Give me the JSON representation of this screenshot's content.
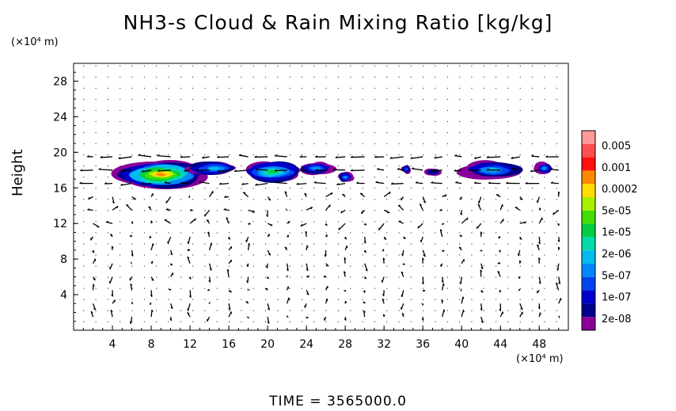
{
  "chart_data": {
    "type": "heatmap",
    "title": "NH3-s Cloud & Rain Mixing Ratio [kg/kg]",
    "ylabel": "Height",
    "x_unit": "(×10⁴ m)",
    "y_unit": "(×10⁴ m)",
    "footer": "TIME = 3565000.0",
    "xlim": [
      0,
      51
    ],
    "ylim": [
      0,
      30
    ],
    "x_ticks": [
      4,
      8,
      12,
      16,
      20,
      24,
      28,
      32,
      36,
      40,
      44,
      48
    ],
    "y_ticks": [
      4,
      8,
      12,
      16,
      20,
      24,
      28
    ],
    "colorbar": {
      "labels": [
        "0.005",
        "0.001",
        "0.0002",
        "5e-05",
        "1e-05",
        "2e-06",
        "5e-07",
        "1e-07",
        "2e-08"
      ],
      "colors": [
        "#ff9a9a",
        "#ff5050",
        "#ff1010",
        "#ff8800",
        "#ffdd00",
        "#aaee00",
        "#44dd00",
        "#00cc44",
        "#00ddaa",
        "#00bbee",
        "#0088ff",
        "#0044ee",
        "#0000cc",
        "#000088",
        "#880099"
      ]
    },
    "cloud_regions": [
      {
        "x_center": 9,
        "y_center": 17.5,
        "x_halfwidth": 4.6,
        "y_halfwidth": 1.6,
        "max_level": 11
      },
      {
        "x_center": 14.5,
        "y_center": 18.2,
        "x_halfwidth": 2.6,
        "y_halfwidth": 0.8,
        "max_level": 5
      },
      {
        "x_center": 20.5,
        "y_center": 17.8,
        "x_halfwidth": 3.2,
        "y_halfwidth": 1.2,
        "max_level": 7
      },
      {
        "x_center": 25,
        "y_center": 18.2,
        "x_halfwidth": 1.8,
        "y_halfwidth": 0.7,
        "max_level": 4
      },
      {
        "x_center": 28,
        "y_center": 17.2,
        "x_halfwidth": 0.8,
        "y_halfwidth": 0.6,
        "max_level": 4
      },
      {
        "x_center": 34.3,
        "y_center": 18.1,
        "x_halfwidth": 0.5,
        "y_halfwidth": 0.5,
        "max_level": 3
      },
      {
        "x_center": 37,
        "y_center": 17.8,
        "x_halfwidth": 0.9,
        "y_halfwidth": 0.4,
        "max_level": 2
      },
      {
        "x_center": 43.2,
        "y_center": 18.0,
        "x_halfwidth": 3.0,
        "y_halfwidth": 1.0,
        "max_level": 5
      },
      {
        "x_center": 48.5,
        "y_center": 18.2,
        "x_halfwidth": 0.9,
        "y_halfwidth": 0.7,
        "max_level": 4
      }
    ],
    "grid": false,
    "legend_position": "right"
  }
}
